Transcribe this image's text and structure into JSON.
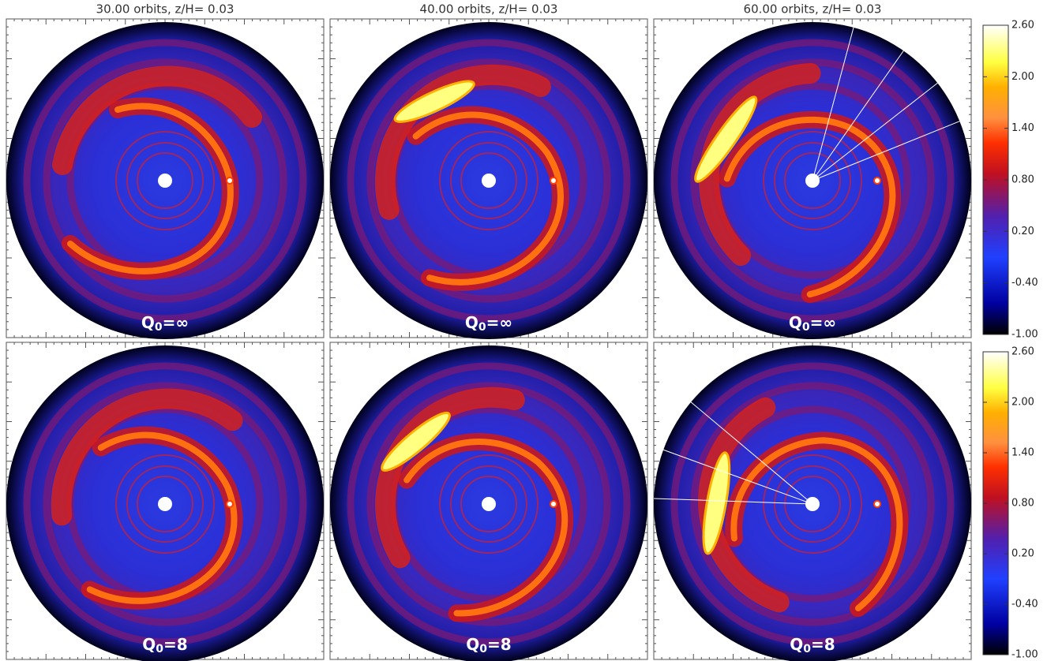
{
  "titles": [
    "30.00 orbits, z/H= 0.03",
    "40.00 orbits, z/H= 0.03",
    "60.00 orbits, z/H= 0.03"
  ],
  "panels": [
    {
      "symbol": "Q",
      "subscript": "0",
      "relation": "=∞"
    },
    {
      "symbol": "Q",
      "subscript": "0",
      "relation": "=∞"
    },
    {
      "symbol": "Q",
      "subscript": "0",
      "relation": "=∞"
    },
    {
      "symbol": "Q",
      "subscript": "0",
      "relation": "=8"
    },
    {
      "symbol": "Q",
      "subscript": "0",
      "relation": "=8"
    },
    {
      "symbol": "Q",
      "subscript": "0",
      "relation": "=8"
    }
  ],
  "colorbars": [
    {
      "range": [
        -1.0,
        2.6
      ],
      "ticks": [
        {
          "value": 2.6,
          "label": "2.60"
        },
        {
          "value": 2.0,
          "label": "2.00"
        },
        {
          "value": 1.4,
          "label": "1.40"
        },
        {
          "value": 0.8,
          "label": "0.80"
        },
        {
          "value": 0.2,
          "label": "0.20"
        },
        {
          "value": -0.4,
          "label": "-0.40"
        },
        {
          "value": -1.0,
          "label": "-1.00"
        }
      ]
    },
    {
      "range": [
        -1.0,
        2.6
      ],
      "ticks": [
        {
          "value": 2.6,
          "label": "2.60"
        },
        {
          "value": 2.0,
          "label": "2.00"
        },
        {
          "value": 1.4,
          "label": "1.40"
        },
        {
          "value": 0.8,
          "label": "0.80"
        },
        {
          "value": 0.2,
          "label": "0.20"
        },
        {
          "value": -0.4,
          "label": "-0.40"
        },
        {
          "value": -1.0,
          "label": "-1.00"
        }
      ]
    }
  ]
}
